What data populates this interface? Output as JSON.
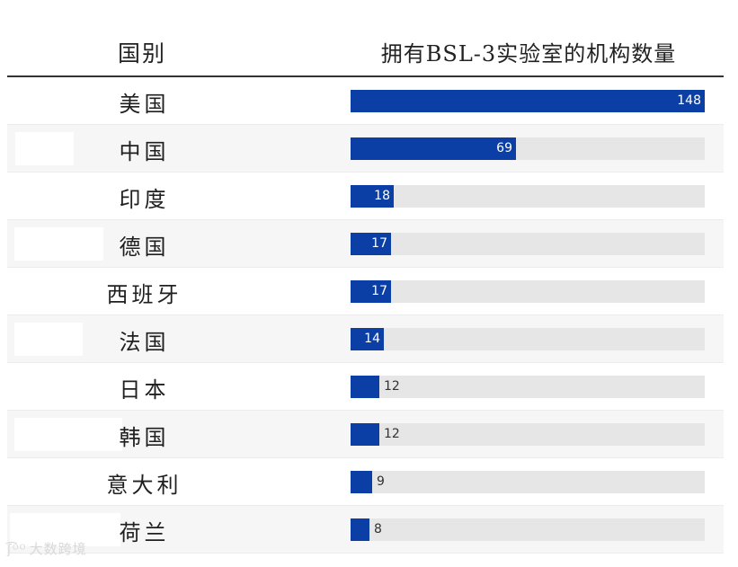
{
  "chart_data": {
    "type": "bar",
    "orientation": "horizontal",
    "column_headers": {
      "country": "国别",
      "count": "拥有BSL-3实验室的机构数量"
    },
    "categories": [
      "美国",
      "中国",
      "印度",
      "德国",
      "西班牙",
      "法国",
      "日本",
      "韩国",
      "意大利",
      "荷兰"
    ],
    "values": [
      148,
      69,
      18,
      17,
      17,
      14,
      12,
      12,
      9,
      8
    ],
    "xlim": [
      0,
      148
    ],
    "grid": false,
    "legend": "none",
    "colors": {
      "bar": "#0b3fa6",
      "track": "#e6e6e6",
      "alt_row": "#f6f6f6"
    }
  },
  "watermark": {
    "icon": "weibo-icon",
    "glyph": "ʃ͡ᴼᴼ",
    "text": "大数跨境"
  }
}
